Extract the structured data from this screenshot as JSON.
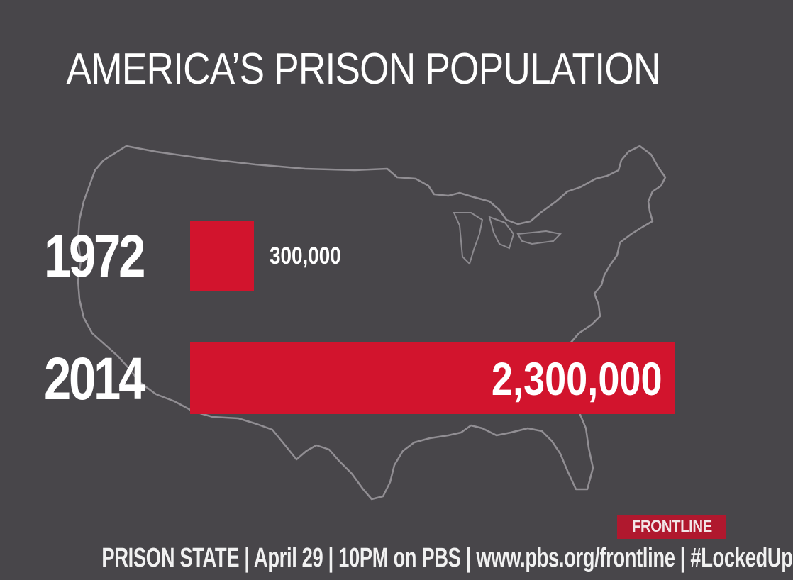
{
  "title": "AMERICA’S PRISON POPULATION",
  "chart_data": {
    "type": "bar",
    "orientation": "horizontal",
    "title": "AMERICA’S PRISON POPULATION",
    "categories": [
      "1972",
      "2014"
    ],
    "values": [
      300000,
      2300000
    ],
    "value_labels": [
      "300,000",
      "2,300,000"
    ],
    "xlabel": "",
    "ylabel": "",
    "grid": false,
    "legend": "none",
    "bar_color": "#d2142d"
  },
  "colors": {
    "background": "#48464a",
    "bar": "#d2142d",
    "map_outline": "#a9a7ac",
    "text": "#ffffff"
  },
  "background_icon": "usa-map-outline",
  "brand": "FRONTLINE",
  "footer": "PRISON STATE | April 29 | 10PM on PBS | www.pbs.org/frontline | #LockedUp"
}
